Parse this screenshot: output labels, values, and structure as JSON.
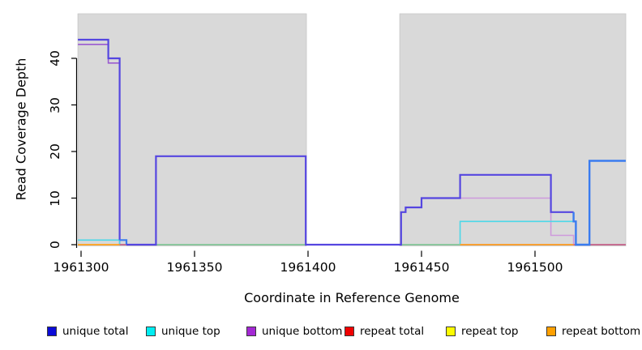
{
  "chart_data": {
    "type": "line",
    "subtype": "step-coverage-plot",
    "title": "",
    "xlabel": "Coordinate in Reference Genome",
    "ylabel": "Read Coverage Depth",
    "xlim": [
      1961298.6,
      1961540
    ],
    "ylim": [
      0,
      49.5
    ],
    "x_ticks": [
      1961300,
      1961350,
      1961400,
      1961450,
      1961500
    ],
    "y_ticks": [
      0,
      10,
      20,
      30,
      40
    ],
    "grid": false,
    "legend_position": "bottom",
    "shade_color": "#D9D9D9",
    "shaded_regions": [
      {
        "x1": 1961298.6,
        "x2": 1961399.3
      },
      {
        "x1": 1961440.4,
        "x2": 1961540
      }
    ],
    "legend": [
      {
        "label": "unique total",
        "color": "#0B0BD8"
      },
      {
        "label": "unique top",
        "color": "#00EDF2"
      },
      {
        "label": "unique bottom",
        "color": "#A428D4"
      },
      {
        "label": "repeat total",
        "color": "#F00000"
      },
      {
        "label": "repeat top",
        "color": "#FCFC00"
      },
      {
        "label": "repeat bottom",
        "color": "#FFA000"
      }
    ],
    "series": [
      {
        "name": "unique total",
        "steps": [
          [
            1961298.6,
            44
          ],
          [
            1961312,
            40
          ],
          [
            1961317,
            1
          ],
          [
            1961320,
            0
          ],
          [
            1961333,
            19
          ],
          [
            1961399,
            0
          ],
          [
            1961441,
            7
          ],
          [
            1961443,
            8
          ],
          [
            1961450,
            10
          ],
          [
            1961467,
            15
          ],
          [
            1961507,
            7
          ],
          [
            1961517,
            5
          ],
          [
            1961518,
            0
          ],
          [
            1961524,
            18
          ]
        ],
        "x_end": 1961540
      },
      {
        "name": "unique top",
        "steps": [
          [
            1961298.6,
            1
          ],
          [
            1961317,
            0
          ],
          [
            1961467,
            5
          ],
          [
            1961518,
            0
          ]
        ],
        "x_end": 1961540
      },
      {
        "name": "unique bottom",
        "steps": [
          [
            1961298.6,
            43
          ],
          [
            1961312,
            39
          ],
          [
            1961317,
            0
          ],
          [
            1961467,
            10
          ],
          [
            1961507,
            2
          ],
          [
            1961517,
            0
          ]
        ],
        "x_end": 1961540
      },
      {
        "name": "repeat total",
        "steps": [
          [
            1961298.6,
            0
          ]
        ],
        "x_end": 1961540
      },
      {
        "name": "repeat top",
        "steps": [
          [
            1961298.6,
            0
          ]
        ],
        "x_end": 1961540
      },
      {
        "name": "repeat bottom",
        "steps": [
          [
            1961298.6,
            0
          ]
        ],
        "x_end": 1961540
      }
    ],
    "render_segments": [
      {
        "series": "repeat top",
        "color": "#F0E930",
        "width": 1.5,
        "points": [
          [
            1961298.6,
            0
          ],
          [
            1961540,
            0
          ]
        ]
      },
      {
        "series": "unique bottom",
        "color": "#9A5BD0",
        "width": 1.6,
        "points": [
          [
            1961298.6,
            43
          ],
          [
            1961312,
            43
          ],
          [
            1961312,
            39
          ],
          [
            1961317,
            39
          ],
          [
            1961317,
            0
          ],
          [
            1961540,
            0
          ]
        ]
      },
      {
        "series": "unique bottom",
        "color": "#CE9ADC",
        "width": 1.6,
        "points": [
          [
            1961467,
            10
          ],
          [
            1961507,
            10
          ],
          [
            1961507,
            2
          ],
          [
            1961517,
            2
          ],
          [
            1961517,
            0
          ]
        ]
      },
      {
        "series": "unique top",
        "color": "#4CD8E8",
        "width": 1.6,
        "points": [
          [
            1961298.6,
            1
          ],
          [
            1961317,
            1
          ],
          [
            1961317,
            0
          ],
          [
            1961467,
            0
          ],
          [
            1961467,
            5
          ],
          [
            1961518,
            5
          ],
          [
            1961518,
            0
          ],
          [
            1961540,
            0
          ]
        ]
      },
      {
        "series": "overlap unique top + repeat top",
        "color": "#8FCB90",
        "width": 1.5,
        "points": [
          [
            1961333,
            0
          ],
          [
            1961399,
            0
          ]
        ]
      },
      {
        "series": "overlap unique top + repeat top",
        "color": "#8FCB90",
        "width": 1.5,
        "points": [
          [
            1961440.4,
            0
          ],
          [
            1961467,
            0
          ]
        ]
      },
      {
        "series": "repeat bottom",
        "color": "#FFA024",
        "width": 1.8,
        "points": [
          [
            1961298.6,
            0
          ],
          [
            1961317,
            0
          ]
        ]
      },
      {
        "series": "repeat bottom",
        "color": "#FFA024",
        "width": 1.8,
        "points": [
          [
            1961467,
            0
          ],
          [
            1961517,
            0
          ]
        ]
      },
      {
        "series": "repeat total",
        "color": "#DB5580",
        "width": 1.5,
        "points": [
          [
            1961317,
            0
          ],
          [
            1961320,
            0
          ]
        ]
      },
      {
        "series": "repeat total",
        "color": "#DB5580",
        "width": 1.5,
        "points": [
          [
            1961517,
            0
          ],
          [
            1961518,
            0
          ]
        ]
      },
      {
        "series": "repeat total",
        "color": "#DB5580",
        "width": 1.5,
        "points": [
          [
            1961524,
            0
          ],
          [
            1961540,
            0
          ]
        ]
      },
      {
        "series": "unique total",
        "color": "#5546E0",
        "width": 2.2,
        "points": [
          [
            1961298.6,
            44
          ],
          [
            1961312,
            44
          ],
          [
            1961312,
            40
          ],
          [
            1961317,
            40
          ],
          [
            1961317,
            1
          ]
        ]
      },
      {
        "series": "unique total",
        "color": "#3A7CF0",
        "width": 2.2,
        "points": [
          [
            1961317,
            1
          ],
          [
            1961320,
            1
          ],
          [
            1961320,
            0
          ]
        ]
      },
      {
        "series": "unique total",
        "color": "#5546E0",
        "width": 2.2,
        "points": [
          [
            1961320,
            0
          ],
          [
            1961333,
            0
          ],
          [
            1961333,
            19
          ],
          [
            1961399,
            19
          ],
          [
            1961399,
            0
          ],
          [
            1961441,
            0
          ],
          [
            1961441,
            7
          ],
          [
            1961443,
            7
          ],
          [
            1961443,
            8
          ],
          [
            1961450,
            8
          ],
          [
            1961450,
            10
          ],
          [
            1961467,
            10
          ],
          [
            1961467,
            15
          ],
          [
            1961507,
            15
          ],
          [
            1961507,
            7
          ],
          [
            1961517,
            7
          ]
        ]
      },
      {
        "series": "unique total",
        "color": "#3A7CF0",
        "width": 2.4,
        "points": [
          [
            1961517,
            7
          ],
          [
            1961517,
            5
          ],
          [
            1961518,
            5
          ],
          [
            1961518,
            0
          ],
          [
            1961524,
            0
          ],
          [
            1961524,
            18
          ],
          [
            1961540,
            18
          ]
        ]
      }
    ]
  }
}
